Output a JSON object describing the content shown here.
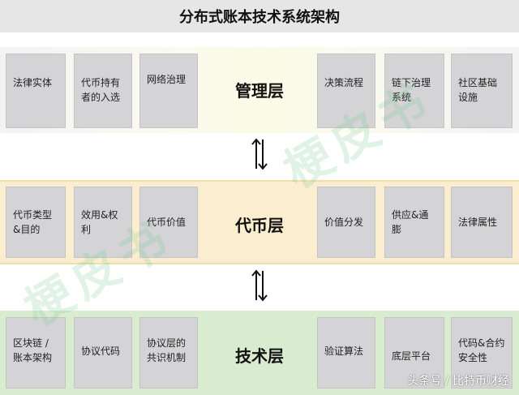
{
  "title": "分布式账本技术系统架构",
  "layers": {
    "management": {
      "name": "管理层",
      "boxes": [
        "法律实体",
        "代币持有者的入选",
        "网络治理",
        "决策流程",
        "链下治理系统",
        "社区基础设施"
      ]
    },
    "token": {
      "name": "代币层",
      "boxes": [
        "代币类型&目的",
        "效用&权利",
        "代币价值",
        "价值分发",
        "供应&通膨",
        "法律属性"
      ]
    },
    "technology": {
      "name": "技术层",
      "boxes": [
        "区块链 / 账本架构",
        "协议代码",
        "协议层的共识机制",
        "验证算法",
        "底层平台",
        "代码&合约安全性"
      ]
    }
  },
  "watermark": "梗皮书",
  "credit": "头条号 / 比特币财经",
  "colors": {
    "title_bar": "#e6e6e6",
    "management_band": "#fbfbe6",
    "token_band": "#fbedcf",
    "technology_band": "#d9ecd0",
    "box": "#d4d4d6"
  }
}
